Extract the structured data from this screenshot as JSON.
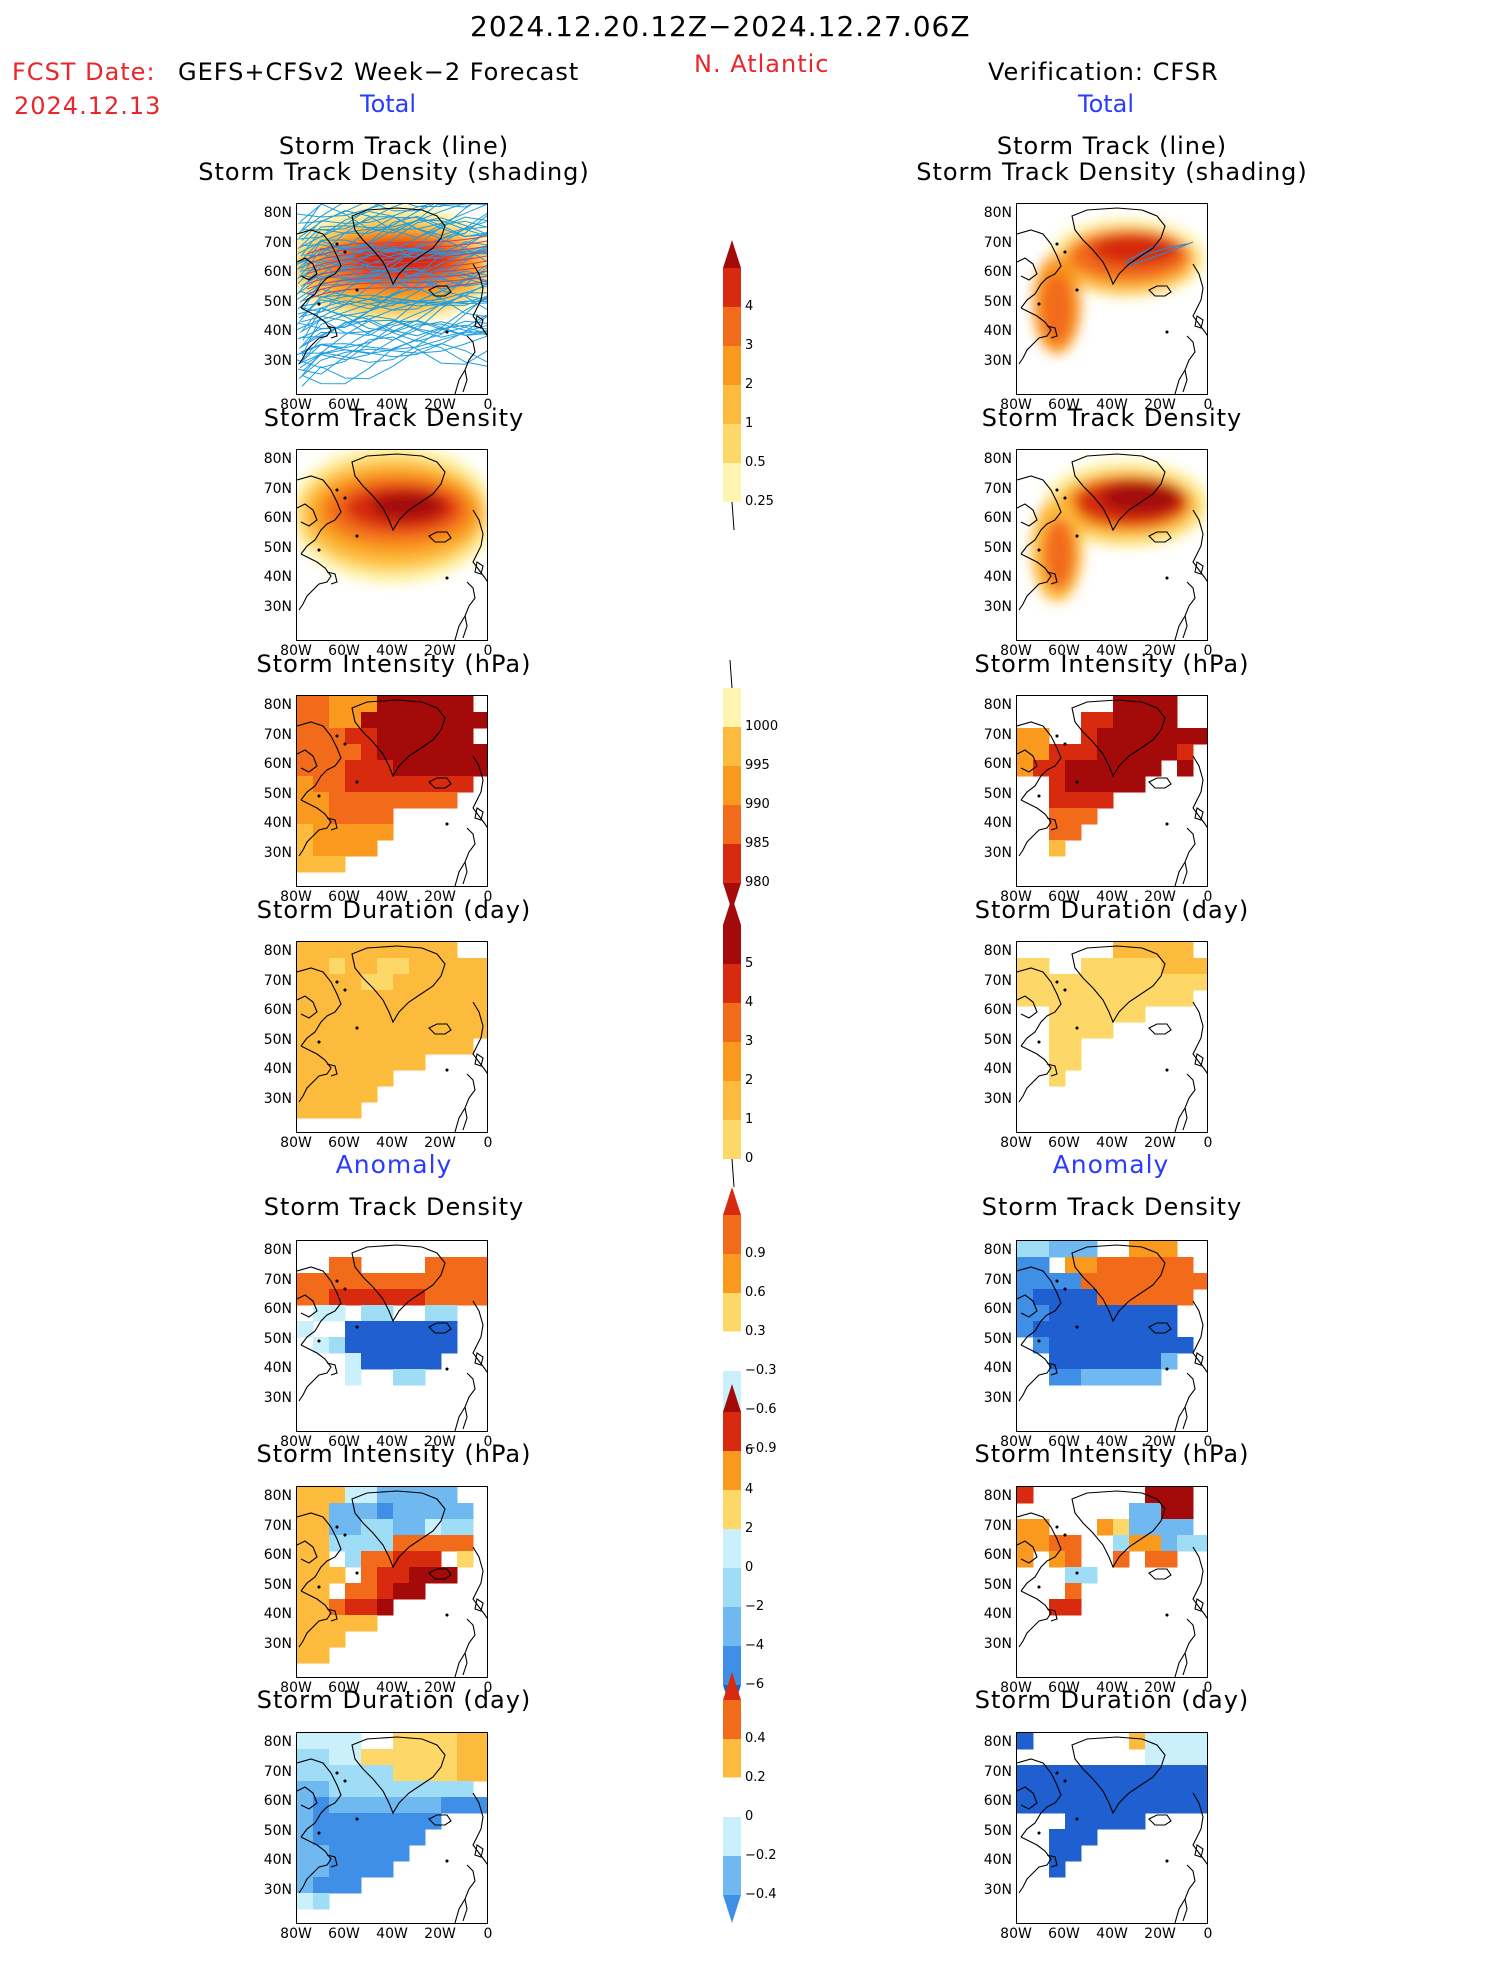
{
  "header": {
    "period": "2024.12.20.12Z−2024.12.27.06Z",
    "fcst_label": "FCST Date:",
    "model": "GEFS+CFSv2 Week−2 Forecast",
    "fcst_date": "2024.12.13",
    "region": "N. Atlantic",
    "verification": "Verification: CFSR",
    "left_total": "Total",
    "right_total": "Total",
    "left_anomaly": "Anomaly",
    "right_anomaly": "Anomaly"
  },
  "titles": {
    "track_line": "Storm Track (line)",
    "track_density_shading": "Storm Track Density (shading)",
    "track_density": "Storm Track Density",
    "intensity": "Storm Intensity (hPa)",
    "duration": "Storm Duration (day)"
  },
  "axes": {
    "lat_ticks": [
      "80N",
      "70N",
      "60N",
      "50N",
      "40N",
      "30N"
    ],
    "lon_ticks": [
      "80W",
      "60W",
      "40W",
      "20W",
      "0"
    ]
  },
  "colorbars": {
    "density": [
      "4",
      "3",
      "2",
      "1",
      "0.5",
      "0.25"
    ],
    "intensity": [
      "1000",
      "995",
      "990",
      "985",
      "980"
    ],
    "duration": [
      "5",
      "4",
      "3",
      "2",
      "1",
      "0"
    ],
    "density_anom": [
      "0.9",
      "0.6",
      "0.3",
      "−0.3",
      "−0.6",
      "−0.9"
    ],
    "intensity_anom": [
      "6",
      "4",
      "2",
      "0",
      "−2",
      "−4",
      "−6"
    ],
    "duration_anom": [
      "0.4",
      "0.2",
      "0",
      "−0.2",
      "−0.4"
    ]
  },
  "colors": {
    "warm": [
      "#fff5b0",
      "#fdd868",
      "#fdbb3e",
      "#f99a1e",
      "#f26b1a",
      "#d72a0e",
      "#a50a0a"
    ],
    "cool": [
      "#c9f0fb",
      "#9fdcf6",
      "#6fb8f0",
      "#3f8fe6",
      "#1f5fd0"
    ],
    "track_line_forecast": "#1e9de0",
    "track_line_obs": "#3c82c8"
  }
}
